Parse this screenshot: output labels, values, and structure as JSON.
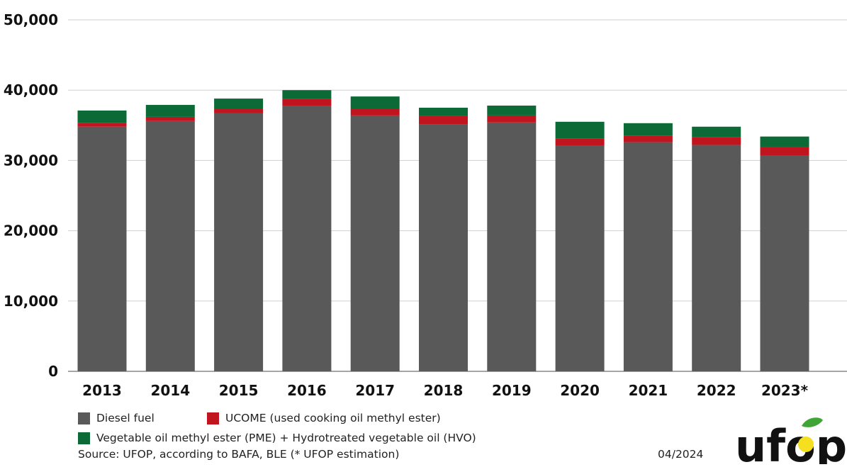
{
  "chart_data": {
    "type": "bar",
    "stacked": true,
    "categories": [
      "2013",
      "2014",
      "2015",
      "2016",
      "2017",
      "2018",
      "2019",
      "2020",
      "2021",
      "2022",
      "2023*"
    ],
    "series": [
      {
        "name": "Diesel fuel",
        "color": "#595959",
        "values": [
          34800,
          35600,
          36700,
          37800,
          36400,
          35100,
          35400,
          32100,
          32600,
          32200,
          30700
        ]
      },
      {
        "name": "UCOME (used cooking oil methyl ester)",
        "color": "#c0141f",
        "values": [
          500,
          600,
          600,
          1000,
          900,
          1200,
          1000,
          1000,
          900,
          1100,
          1200
        ]
      },
      {
        "name": "Vegetable oil methyl ester (PME) + Hydrotreated vegetable oil (HVO)",
        "color": "#0b6a36",
        "values": [
          1800,
          1700,
          1500,
          1200,
          1800,
          1200,
          1400,
          2400,
          1800,
          1500,
          1500
        ]
      }
    ],
    "ylim": [
      0,
      50000
    ],
    "yticks": [
      "0",
      "10,000",
      "20,000",
      "30,000",
      "40,000",
      "50,000"
    ],
    "grid": true,
    "legend_position": "bottom-left"
  },
  "source": "Source: UFOP, according to BAFA, BLE (* UFOP estimation)",
  "date": "04/2024",
  "logo_text": "ufop"
}
